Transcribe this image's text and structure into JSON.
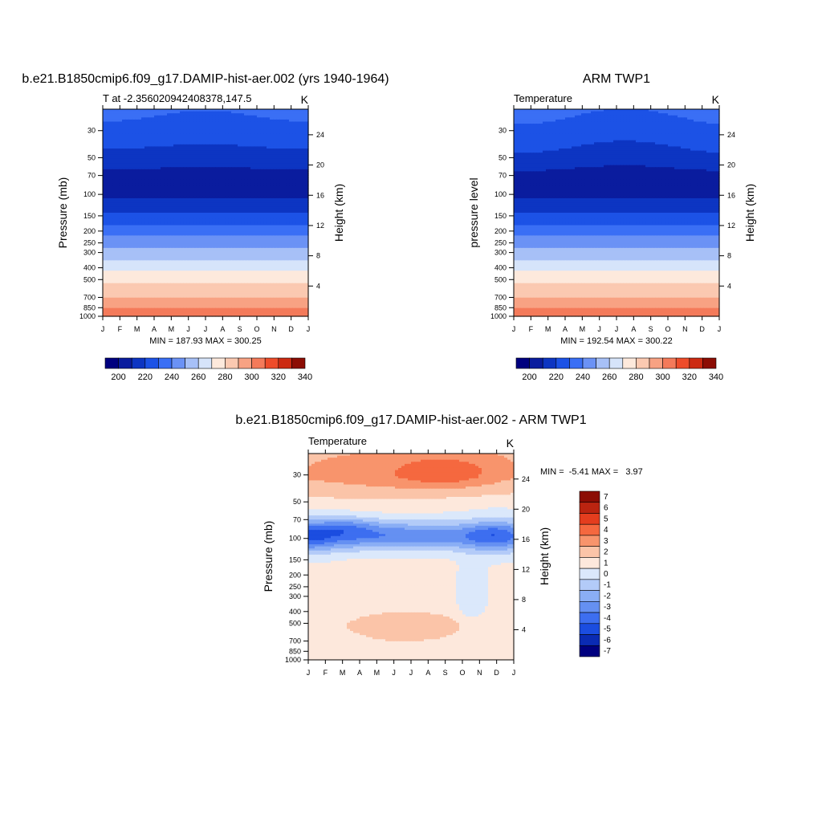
{
  "months": [
    "J",
    "F",
    "M",
    "A",
    "M",
    "J",
    "J",
    "A",
    "S",
    "O",
    "N",
    "D",
    "J"
  ],
  "panels": [
    {
      "title": "b.e21.B1850cmip6.f09_g17.DAMIP-hist-aer.002 (yrs 1940-1964)",
      "left_string": "T at -2.356020942408378,147.5",
      "right_string": "K",
      "ylabel": "Pressure (mb)",
      "y2label": "Height (km)",
      "minmax": "MIN = 187.93 MAX = 300.25"
    },
    {
      "title": "ARM TWP1",
      "left_string": "Temperature",
      "right_string": "K",
      "ylabel": "pressure level",
      "y2label": "Height (km)",
      "minmax": "MIN = 192.54 MAX = 300.22"
    },
    {
      "title": "b.e21.B1850cmip6.f09_g17.DAMIP-hist-aer.002 - ARM TWP1",
      "left_string": "Temperature",
      "right_string": "K",
      "ylabel": "Pressure (mb)",
      "y2label": "Height (km)",
      "minmax": "MIN =  -5.41 MAX =   3.97"
    }
  ],
  "chart_data": [
    {
      "type": "heatmap",
      "title": "b.e21.B1850cmip6.f09_g17.DAMIP-hist-aer.002 (yrs 1940-1964)",
      "subtitle": "T at -2.356020942408378,147.5",
      "units": "K",
      "xlabel": "",
      "ylabel": "Pressure (mb)",
      "y2label": "Height (km)",
      "x": [
        "J",
        "F",
        "M",
        "A",
        "M",
        "J",
        "J",
        "A",
        "S",
        "O",
        "N",
        "D",
        "J"
      ],
      "y_scale": "log",
      "y_reversed": true,
      "ylim": [
        1000,
        20
      ],
      "y_ticks": [
        30,
        50,
        70,
        100,
        150,
        200,
        250,
        300,
        400,
        500,
        700,
        850,
        1000
      ],
      "y2_ticks": [
        24,
        20,
        16,
        12,
        8,
        4
      ],
      "min": 187.93,
      "max": 300.25,
      "bands": [
        {
          "p": 1000,
          "color_level": 300
        },
        {
          "p": 850,
          "color_level": 290
        },
        {
          "p": 700,
          "color_level": 280
        },
        {
          "p": 500,
          "color_level": 270
        },
        {
          "p": 400,
          "color_level": 260
        },
        {
          "p": 300,
          "color_level": 250
        },
        {
          "p": 250,
          "color_level": 240
        },
        {
          "p": 200,
          "color_level": 230
        },
        {
          "p": 150,
          "color_level": 210
        },
        {
          "p": 100,
          "color_level": 200
        },
        {
          "p": 60,
          "color_level": 210
        },
        {
          "p": 40,
          "color_level": 220
        }
      ],
      "colorbar": {
        "levels": [
          200,
          220,
          240,
          260,
          280,
          300,
          320,
          340
        ]
      }
    },
    {
      "type": "heatmap",
      "title": "ARM TWP1",
      "subtitle": "Temperature",
      "units": "K",
      "xlabel": "",
      "ylabel": "pressure level",
      "y2label": "Height (km)",
      "x": [
        "J",
        "F",
        "M",
        "A",
        "M",
        "J",
        "J",
        "A",
        "S",
        "O",
        "N",
        "D",
        "J"
      ],
      "y_scale": "log",
      "y_reversed": true,
      "ylim": [
        1000,
        20
      ],
      "y_ticks": [
        30,
        50,
        70,
        100,
        150,
        200,
        250,
        300,
        400,
        500,
        700,
        850,
        1000
      ],
      "y2_ticks": [
        24,
        20,
        16,
        12,
        8,
        4
      ],
      "min": 192.54,
      "max": 300.22,
      "colorbar": {
        "levels": [
          200,
          220,
          240,
          260,
          280,
          300,
          320,
          340
        ]
      }
    },
    {
      "type": "heatmap",
      "title": "b.e21.B1850cmip6.f09_g17.DAMIP-hist-aer.002 - ARM TWP1",
      "subtitle": "Temperature",
      "units": "K",
      "xlabel": "",
      "ylabel": "Pressure (mb)",
      "y2label": "Height (km)",
      "x": [
        "J",
        "F",
        "M",
        "A",
        "M",
        "J",
        "J",
        "A",
        "S",
        "O",
        "N",
        "D",
        "J"
      ],
      "y_scale": "log",
      "y_reversed": true,
      "ylim": [
        1000,
        20
      ],
      "y_ticks": [
        30,
        50,
        70,
        100,
        150,
        200,
        250,
        300,
        400,
        500,
        700,
        850,
        1000
      ],
      "y2_ticks": [
        24,
        20,
        16,
        12,
        8,
        4
      ],
      "min": -5.41,
      "max": 3.97,
      "colorbar": {
        "levels": [
          7,
          6,
          5,
          4,
          3,
          2,
          1,
          0,
          -1,
          -2,
          -3,
          -4,
          -5,
          -6,
          -7
        ]
      }
    }
  ],
  "colors": {
    "abs_scale": [
      "#00007f",
      "#0a1c9e",
      "#0d35c2",
      "#1c52e6",
      "#3a6ff5",
      "#6b92f5",
      "#a7c0f7",
      "#d6e4fa",
      "#fde9dc",
      "#fbc9b1",
      "#f8a283",
      "#f47a5a",
      "#ee4c2a",
      "#cc2a12",
      "#8c0d04"
    ],
    "diff_scale": [
      "#8c0d04",
      "#bb2410",
      "#e43d1e",
      "#f5683f",
      "#f8946c",
      "#fbc4a8",
      "#fde8dc",
      "#dbe8fb",
      "#b3cbf8",
      "#8aaef5",
      "#6590f2",
      "#3d6ef0",
      "#1b4de0",
      "#0a2bb3",
      "#00007f"
    ]
  }
}
